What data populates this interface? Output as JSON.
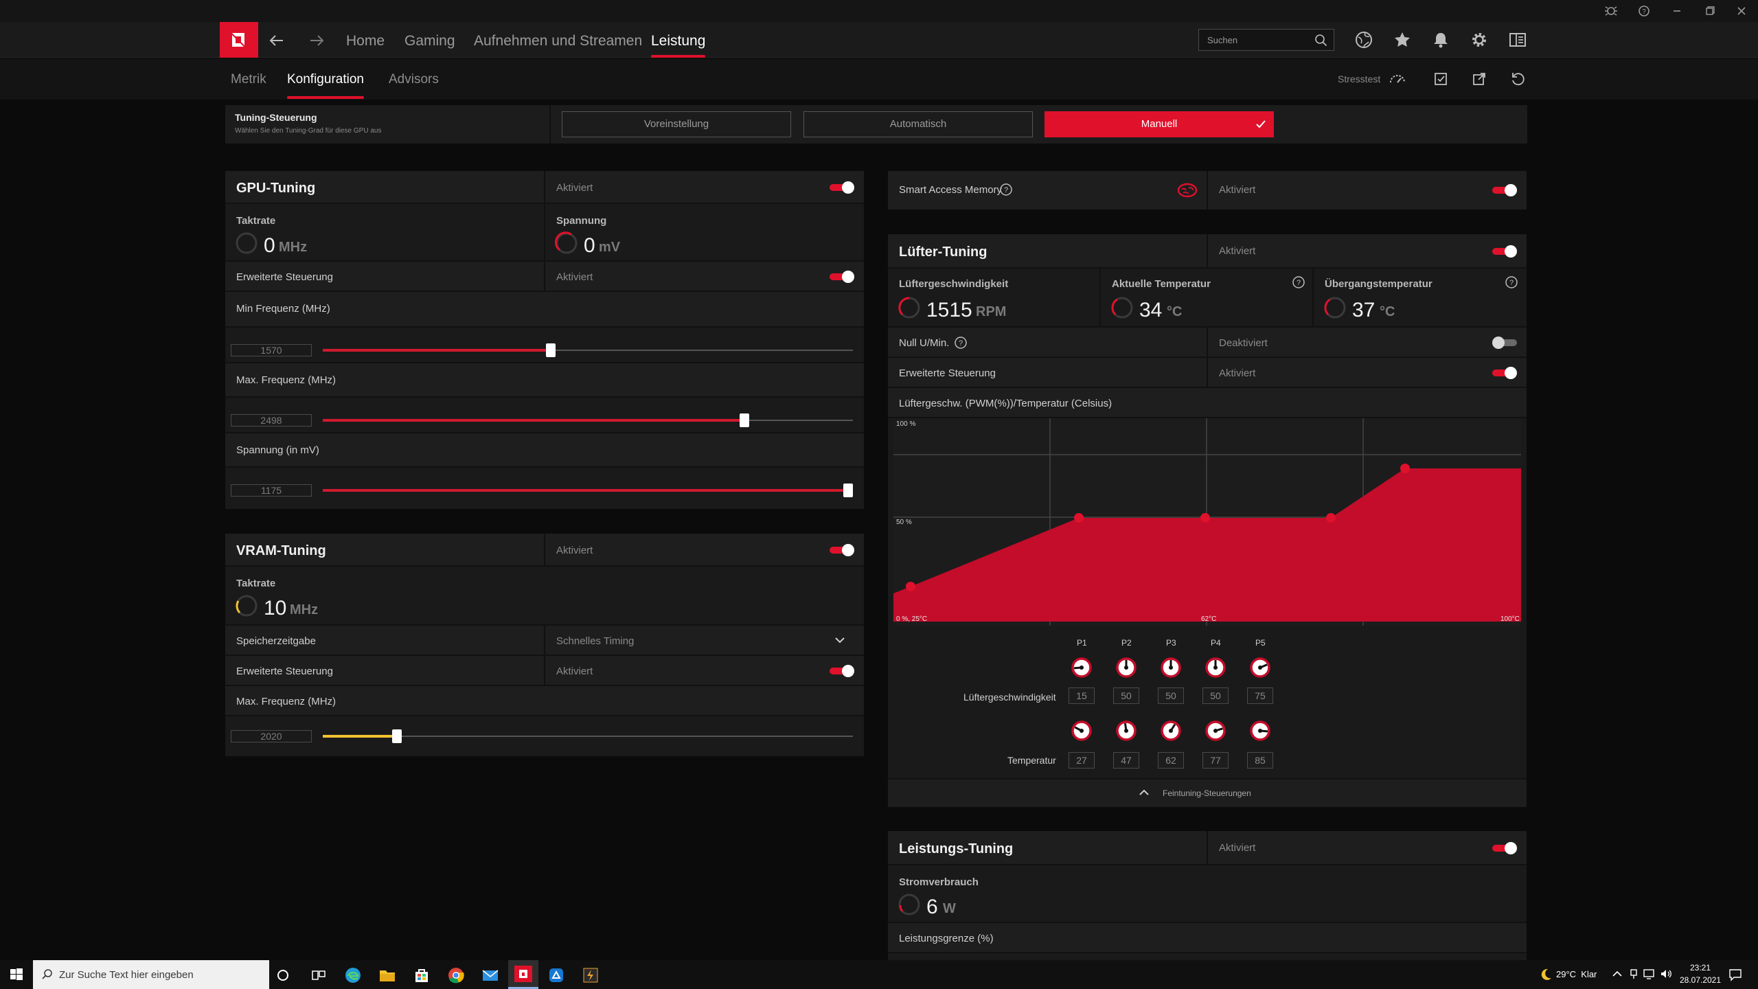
{
  "app": {
    "nav_tabs": [
      "Home",
      "Gaming",
      "Aufnehmen und Streamen",
      "Leistung"
    ],
    "active_nav": "Leistung",
    "search_placeholder": "Suchen",
    "sub_tabs": [
      "Metrik",
      "Konfiguration",
      "Advisors"
    ],
    "stresstest_label": "Stresstest"
  },
  "tuning_control": {
    "title": "Tuning-Steuerung",
    "subtitle": "Wählen Sie den Tuning-Grad für diese GPU aus",
    "options": [
      "Voreinstellung",
      "Automatisch",
      "Manuell"
    ],
    "selected": "Manuell"
  },
  "gpu_tuning": {
    "title": "GPU-Tuning",
    "status": "Aktiviert",
    "enabled": true,
    "clock_label": "Taktrate",
    "clock_value": "0",
    "clock_unit": "MHz",
    "voltage_label": "Spannung",
    "voltage_value": "0",
    "voltage_unit": "mV",
    "advanced_label": "Erweiterte Steuerung",
    "advanced_status": "Aktiviert",
    "min_freq_label": "Min Frequenz (MHz)",
    "min_freq_value": "1570",
    "min_freq_fraction": 0.43,
    "max_freq_label": "Max. Frequenz (MHz)",
    "max_freq_value": "2498",
    "max_freq_fraction": 0.795,
    "voltage_slider_label": "Spannung (in mV)",
    "voltage_slider_value": "1175",
    "voltage_slider_fraction": 1.0
  },
  "vram_tuning": {
    "title": "VRAM-Tuning",
    "status": "Aktiviert",
    "enabled": true,
    "clock_label": "Taktrate",
    "clock_value": "10",
    "clock_unit": "MHz",
    "memory_timing_label": "Speicherzeitgabe",
    "memory_timing_value": "Schnelles Timing",
    "advanced_label": "Erweiterte Steuerung",
    "advanced_status": "Aktiviert",
    "max_freq_label": "Max. Frequenz (MHz)",
    "max_freq_value": "2020",
    "max_freq_fraction": 0.14
  },
  "smart_access_memory": {
    "label": "Smart Access Memory",
    "status": "Aktiviert",
    "enabled": true
  },
  "fan_tuning": {
    "title": "Lüfter-Tuning",
    "status": "Aktiviert",
    "enabled": true,
    "fan_speed_label": "Lüftergeschwindigkeit",
    "fan_speed_value": "1515",
    "fan_speed_unit": "RPM",
    "current_temp_label": "Aktuelle Temperatur",
    "current_temp_value": "34",
    "current_temp_unit": "°C",
    "junction_temp_label": "Übergangstemperatur",
    "junction_temp_value": "37",
    "junction_temp_unit": "°C",
    "zero_rpm_label": "Null U/Min.",
    "zero_rpm_status": "Deaktiviert",
    "zero_rpm_enabled": false,
    "advanced_label": "Erweiterte Steuerung",
    "advanced_status": "Aktiviert",
    "curve_title": "Lüftergeschw. (PWM(%))/Temperatur (Celsius)",
    "curve_y_top": "100 %",
    "curve_y_mid": "50 %",
    "curve_x_left": "0 %, 25°C",
    "curve_x_mid": "62°C",
    "curve_x_right": "100°C",
    "points": [
      "P1",
      "P2",
      "P3",
      "P4",
      "P5"
    ],
    "fan_speed_row_label": "Lüftergeschwindigkeit",
    "fan_speeds": [
      "15",
      "50",
      "50",
      "50",
      "75"
    ],
    "temperature_row_label": "Temperatur",
    "temperatures": [
      "27",
      "47",
      "62",
      "77",
      "85"
    ],
    "fine_tuning_label": "Feintuning-Steuerungen"
  },
  "power_tuning": {
    "title": "Leistungs-Tuning",
    "status": "Aktiviert",
    "enabled": true,
    "consumption_label": "Stromverbrauch",
    "consumption_value": "6",
    "consumption_unit": "W",
    "limit_label": "Leistungsgrenze (%)"
  },
  "taskbar": {
    "search_placeholder": "Zur Suche Text hier eingeben",
    "weather": "29°C  Klar",
    "time": "23:21",
    "date": "28.07.2021"
  },
  "colors": {
    "accent": "#e0112b",
    "vram_accent": "#f2c230"
  }
}
